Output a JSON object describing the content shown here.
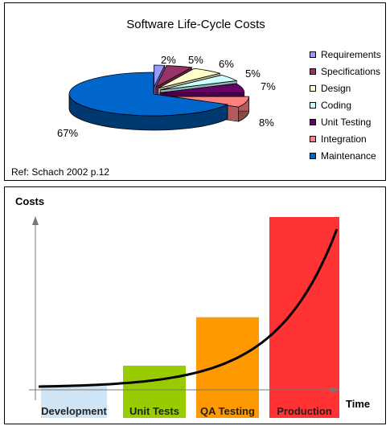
{
  "chart_data": [
    {
      "type": "pie",
      "title": "Software Life-Cycle Costs",
      "note": "Ref: Schach 2002 p.12",
      "legend_position": "right",
      "slices": [
        {
          "label": "Requirements",
          "value": 2,
          "value_label": "2%",
          "color": "#9999ff"
        },
        {
          "label": "Specifications",
          "value": 5,
          "value_label": "5%",
          "color": "#993366"
        },
        {
          "label": "Design",
          "value": 6,
          "value_label": "6%",
          "color": "#ffffcc"
        },
        {
          "label": "Coding",
          "value": 5,
          "value_label": "5%",
          "color": "#ccffff"
        },
        {
          "label": "Unit Testing",
          "value": 7,
          "value_label": "7%",
          "color": "#660066"
        },
        {
          "label": "Integration",
          "value": 8,
          "value_label": "8%",
          "color": "#ff8080"
        },
        {
          "label": "Maintenance",
          "value": 67,
          "value_label": "67%",
          "color": "#0066cc"
        }
      ]
    },
    {
      "type": "bar",
      "ylabel": "Costs",
      "xlabel": "Time",
      "categories": [
        "Development",
        "Unit Tests",
        "QA Testing",
        "Production"
      ],
      "values": [
        3,
        14,
        42,
        100
      ],
      "colors": [
        "#cfe4f4",
        "#99cc00",
        "#ff9900",
        "#ff3333"
      ],
      "ylim": [
        0,
        100
      ],
      "trend": "exponential"
    }
  ]
}
